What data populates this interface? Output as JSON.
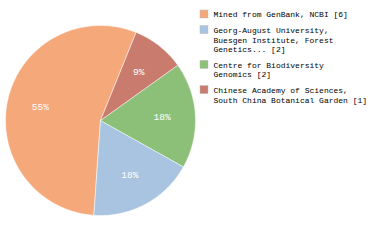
{
  "chart_data": {
    "type": "pie",
    "categories": [
      "Mined from GenBank, NCBI [6]",
      "Georg-August University,\nBuesgen Institute, Forest\nGenetics... [2]",
      "Centre for Biodiversity\nGenomics [2]",
      "Chinese Academy of Sciences,\nSouth China Botanical Garden [1]"
    ],
    "values": [
      55,
      18,
      18,
      9
    ],
    "value_labels": [
      "55%",
      "18%",
      "18%",
      "9%"
    ],
    "colors": [
      "#F5A87A",
      "#A8C4E0",
      "#8CBF78",
      "#C97B6E"
    ],
    "data_labels": true,
    "legend": "right"
  }
}
